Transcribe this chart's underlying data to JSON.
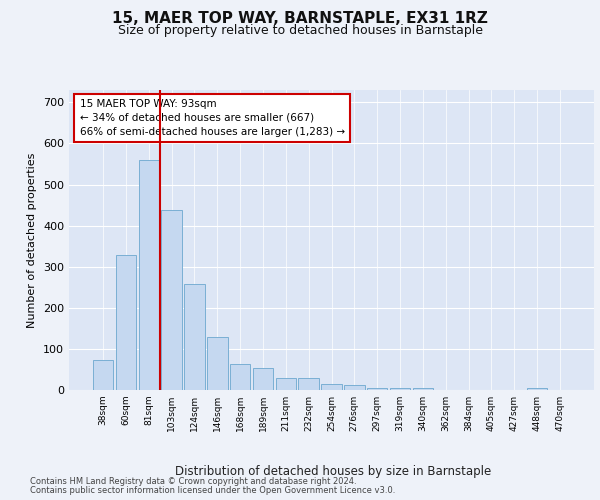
{
  "title": "15, MAER TOP WAY, BARNSTAPLE, EX31 1RZ",
  "subtitle": "Size of property relative to detached houses in Barnstaple",
  "xlabel": "Distribution of detached houses by size in Barnstaple",
  "ylabel": "Number of detached properties",
  "bar_labels": [
    "38sqm",
    "60sqm",
    "81sqm",
    "103sqm",
    "124sqm",
    "146sqm",
    "168sqm",
    "189sqm",
    "211sqm",
    "232sqm",
    "254sqm",
    "276sqm",
    "297sqm",
    "319sqm",
    "340sqm",
    "362sqm",
    "384sqm",
    "405sqm",
    "427sqm",
    "448sqm",
    "470sqm"
  ],
  "bar_values": [
    72,
    328,
    560,
    438,
    258,
    128,
    63,
    53,
    28,
    28,
    15,
    13,
    5,
    5,
    5,
    1,
    0,
    0,
    0,
    5,
    0
  ],
  "bar_color": "#c5d8f0",
  "bar_edgecolor": "#7aafd4",
  "vline_color": "#cc0000",
  "annotation_text": "15 MAER TOP WAY: 93sqm\n← 34% of detached houses are smaller (667)\n66% of semi-detached houses are larger (1,283) →",
  "annotation_box_color": "#ffffff",
  "annotation_box_edgecolor": "#cc0000",
  "ylim": [
    0,
    730
  ],
  "yticks": [
    0,
    100,
    200,
    300,
    400,
    500,
    600,
    700
  ],
  "fig_bg_color": "#eef2f9",
  "plot_bg_color": "#dde6f5",
  "grid_color": "#ffffff",
  "title_fontsize": 11,
  "subtitle_fontsize": 9,
  "footer_line1": "Contains HM Land Registry data © Crown copyright and database right 2024.",
  "footer_line2": "Contains public sector information licensed under the Open Government Licence v3.0."
}
